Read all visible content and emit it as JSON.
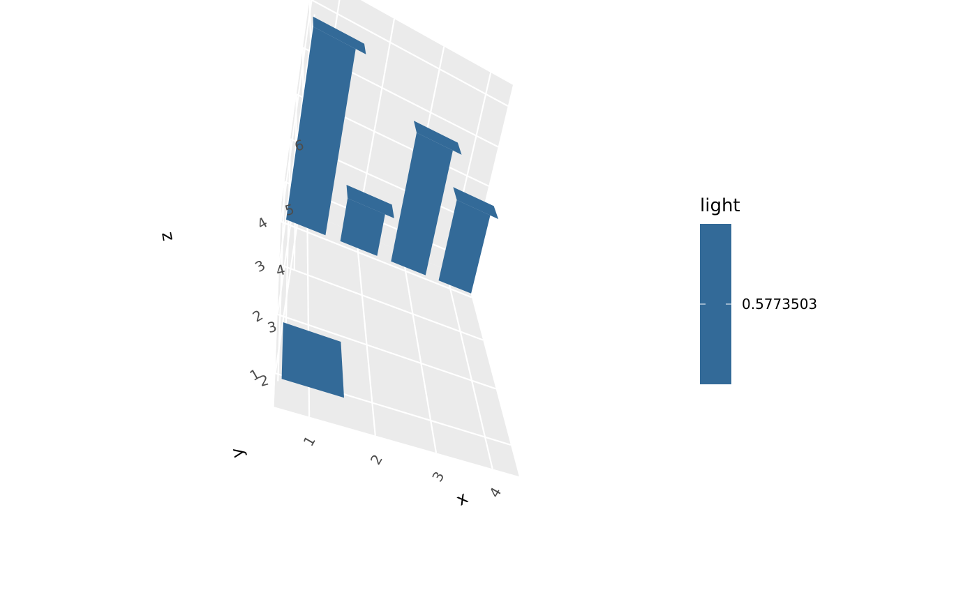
{
  "chart_data": {
    "type": "3d-bar",
    "xlabel": "x",
    "ylabel": "y",
    "zlabel": "z",
    "x_ticks": [
      "1",
      "2",
      "3",
      "4"
    ],
    "y_ticks": [
      "1",
      "2",
      "3",
      "4"
    ],
    "z_ticks": [
      "2",
      "3",
      "4",
      "5",
      "6"
    ],
    "bars": [
      {
        "x": 1,
        "y": 1,
        "z": 2
      },
      {
        "x": 1,
        "y": 4,
        "z": 6
      },
      {
        "x": 2,
        "y": 4,
        "z": 3
      },
      {
        "x": 3,
        "y": 4,
        "z": 5
      },
      {
        "x": 4,
        "y": 4,
        "z": 4
      }
    ],
    "fill_color": "#336a98",
    "panel_color": "#ebebeb",
    "grid_color": "#ffffff",
    "legend": {
      "title": "light",
      "label": "0.5773503",
      "color": "#336a98",
      "position": "right"
    }
  }
}
